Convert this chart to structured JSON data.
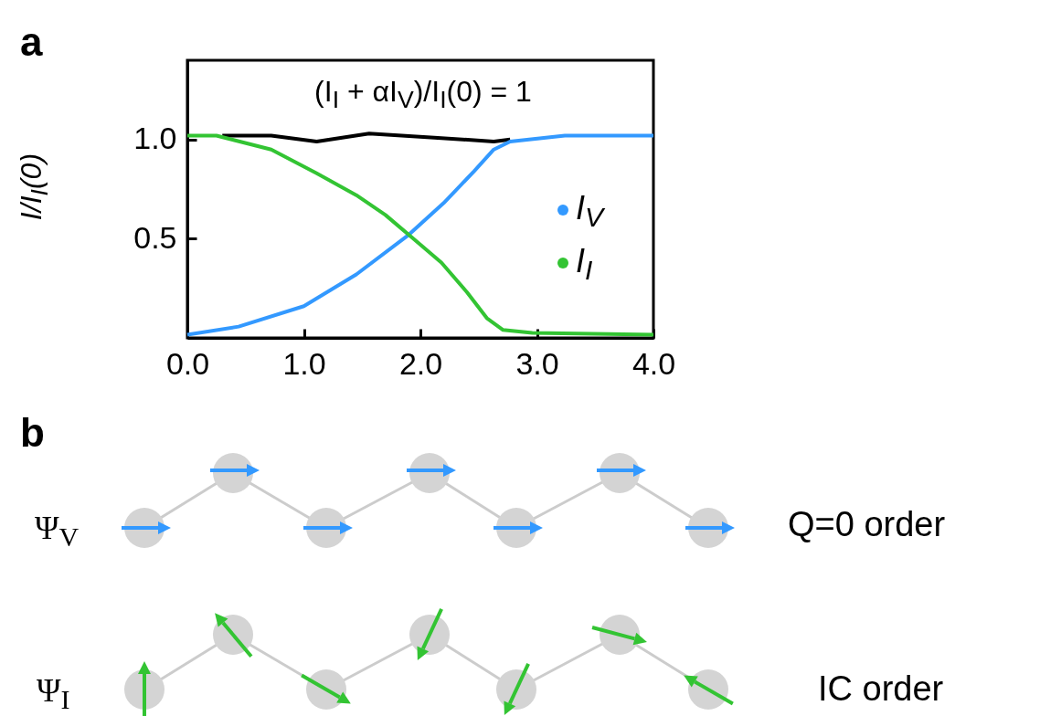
{
  "chart_data": {
    "type": "line",
    "ylabel": "I/I$_{I}$(0)",
    "annotations": [
      "(I$_{I}$ + αI$_{V}$)/I$_{I}$(0) = 1",
      "a",
      "b",
      "Ψ$_{V}$",
      "Ψ$_{I}$",
      "Q=0 order",
      "IC order"
    ],
    "xlim": [
      0,
      4
    ],
    "xticks": [
      {
        "value": 0,
        "label": "0.0"
      },
      {
        "value": 1,
        "label": "1.0"
      },
      {
        "value": 2,
        "label": "2.0"
      },
      {
        "value": 3,
        "label": "3.0"
      },
      {
        "value": 4,
        "label": "4.0"
      }
    ],
    "ylim": [
      0,
      1.4
    ],
    "yticks": [
      {
        "value": 0.5,
        "label": "0.5"
      },
      {
        "value": 1,
        "label": "1.0"
      }
    ],
    "legend": "right",
    "line_style": "solid",
    "series": [
      {
        "color": "#000000",
        "x": [
          0.3,
          0.72,
          1.11,
          1.56,
          2.12,
          2.63,
          2.77
        ],
        "values": [
          1.02,
          1.02,
          0.99,
          1.03,
          1.01,
          0.99,
          1.0
        ]
      },
      {
        "name": "I$_{V}$",
        "color": "#3399ff",
        "x": [
          0,
          0.44,
          1.0,
          1.45,
          1.9,
          2.2,
          2.46,
          2.63,
          2.77,
          3.24,
          4.0
        ],
        "values": [
          0.016,
          0.057,
          0.16,
          0.32,
          0.52,
          0.68,
          0.84,
          0.95,
          0.99,
          1.02,
          1.02
        ]
      },
      {
        "name": "I$_{I}$",
        "color": "#33c433",
        "x": [
          0,
          0.25,
          0.72,
          1.11,
          1.45,
          1.7,
          1.9,
          2.18,
          2.4,
          2.57,
          2.71,
          2.96,
          4.0
        ],
        "values": [
          1.02,
          1.02,
          0.95,
          0.83,
          0.72,
          0.62,
          0.52,
          0.38,
          0.23,
          0.1,
          0.04,
          0.025,
          0.016
        ]
      }
    ]
  }
}
